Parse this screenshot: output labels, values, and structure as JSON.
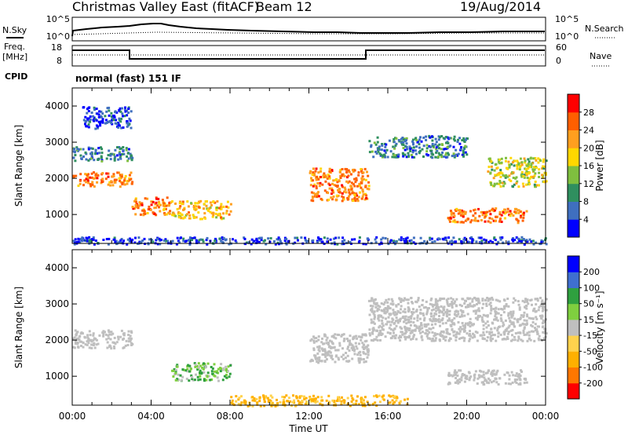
{
  "header": {
    "site": "Christmas Valley East (fitACF)",
    "beam": "Beam 12",
    "date": "19/Aug/2014"
  },
  "left_labels": {
    "nsky": "N.Sky",
    "freq_line1": "Freq.",
    "freq_line2": "[MHz]",
    "cpid": "CPID"
  },
  "right_labels": {
    "nsearch": "N.Search",
    "nave": "Nave"
  },
  "noise_panel": {
    "left_ticks": [
      "10^5",
      "10^0"
    ],
    "right_ticks": [
      "10^5",
      "10^0"
    ]
  },
  "freq_panel": {
    "left_ticks": [
      "18",
      "8"
    ],
    "right_ticks": [
      "60",
      "0"
    ]
  },
  "cpid_panel": {
    "text": "normal (fast) 151 IF"
  },
  "colors": {
    "power": [
      "#0000ff",
      "#3f6fbf",
      "#2f8f5f",
      "#7fbf3f",
      "#ffd700",
      "#ff9f1f",
      "#ff5f00",
      "#ff0000"
    ],
    "velocity": [
      "#ff0000",
      "#ff7700",
      "#ffb000",
      "#ffd24d",
      "#bfbfbf",
      "#7fcf3f",
      "#2fa03f",
      "#3f6fcf",
      "#0000ff"
    ]
  },
  "chart_data": [
    {
      "type": "heatmap",
      "name": "power",
      "ylabel": "Slant Range [km]",
      "yticks": [
        1000,
        2000,
        3000,
        4000
      ],
      "ylim": [
        200,
        4500
      ],
      "xlim": [
        0,
        24
      ],
      "xticks": [
        "00:00",
        "04:00",
        "08:00",
        "12:00",
        "16:00",
        "20:00",
        "00:00"
      ],
      "colorbar": {
        "label": "Power [dB]",
        "ticks": [
          "4",
          "8",
          "12",
          "16",
          "20",
          "24",
          "28"
        ],
        "range": [
          0,
          32
        ]
      },
      "echo_regions": [
        {
          "t": [
            0,
            3
          ],
          "r": [
            1800,
            2200
          ],
          "level": 6
        },
        {
          "t": [
            0,
            3
          ],
          "r": [
            2500,
            2900
          ],
          "level": 2
        },
        {
          "t": [
            0.5,
            3
          ],
          "r": [
            3400,
            4000
          ],
          "level": 1
        },
        {
          "t": [
            3,
            5
          ],
          "r": [
            1000,
            1500
          ],
          "level": 6
        },
        {
          "t": [
            5,
            8
          ],
          "r": [
            900,
            1400
          ],
          "level": 5
        },
        {
          "t": [
            12,
            15
          ],
          "r": [
            1400,
            2300
          ],
          "level": 6
        },
        {
          "t": [
            15,
            20
          ],
          "r": [
            2600,
            3200
          ],
          "level": 2
        },
        {
          "t": [
            19,
            23
          ],
          "r": [
            800,
            1200
          ],
          "level": 6
        },
        {
          "t": [
            21,
            24
          ],
          "r": [
            1800,
            2600
          ],
          "level": 4
        },
        {
          "t": [
            0,
            24
          ],
          "r": [
            200,
            400
          ],
          "level": 1
        }
      ]
    },
    {
      "type": "heatmap",
      "name": "velocity",
      "ylabel": "Slant Range [km]",
      "yticks": [
        1000,
        2000,
        3000,
        4000
      ],
      "ylim": [
        200,
        4500
      ],
      "xlim": [
        0,
        24
      ],
      "xticks": [
        "00:00",
        "04:00",
        "08:00",
        "12:00",
        "16:00",
        "20:00",
        "00:00"
      ],
      "xlabel": "Time UT",
      "colorbar": {
        "label": "Velocity [m s⁻¹]",
        "ticks": [
          "200",
          "100",
          "50",
          "15",
          "-15",
          "-50",
          "-100",
          "-200"
        ],
        "range": [
          -250,
          250
        ]
      },
      "echo_regions": [
        {
          "t": [
            0,
            3
          ],
          "r": [
            1800,
            2300
          ],
          "level": 0
        },
        {
          "t": [
            5,
            8
          ],
          "r": [
            900,
            1400
          ],
          "level": 25
        },
        {
          "t": [
            12,
            15
          ],
          "r": [
            1400,
            2200
          ],
          "level": 0
        },
        {
          "t": [
            15,
            24
          ],
          "r": [
            2000,
            3200
          ],
          "level": 0
        },
        {
          "t": [
            19,
            23
          ],
          "r": [
            800,
            1200
          ],
          "level": 0
        },
        {
          "t": [
            8,
            17
          ],
          "r": [
            200,
            500
          ],
          "level": -40
        }
      ]
    }
  ]
}
